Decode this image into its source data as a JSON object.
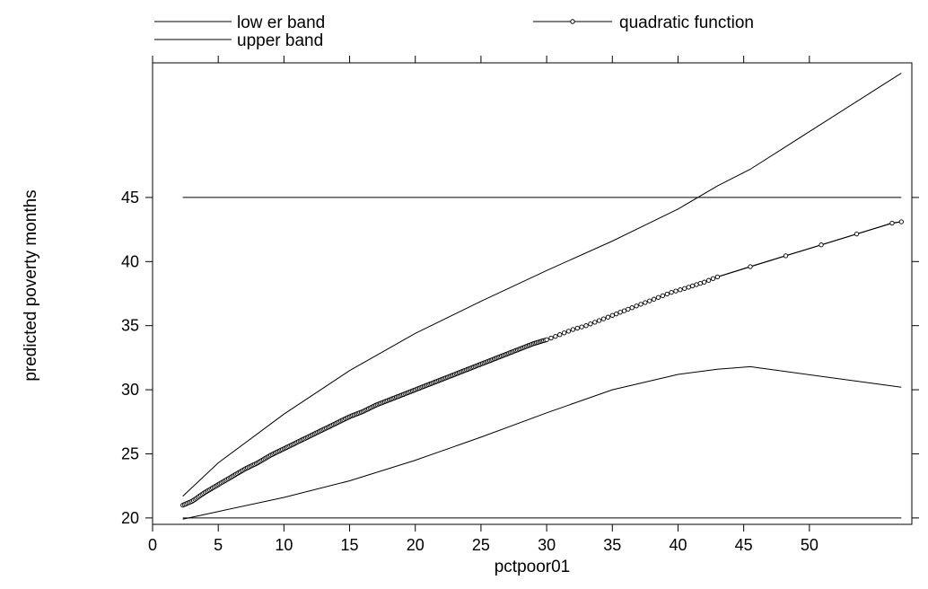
{
  "chart_data": {
    "type": "line",
    "xlabel": "pctpoor01",
    "ylabel": "predicted poverty months",
    "xlim": [
      0,
      57.8
    ],
    "ylim": [
      19.5,
      55.5
    ],
    "xticks": [
      0,
      5,
      10,
      15,
      20,
      25,
      30,
      35,
      40,
      45,
      50
    ],
    "yticks": [
      20,
      25,
      30,
      35,
      40,
      45
    ],
    "grid": false,
    "legend_position": "top",
    "legend": [
      {
        "label": "low er band",
        "style": "line"
      },
      {
        "label": "quadratic function",
        "style": "line-circle"
      },
      {
        "label": "upper band",
        "style": "line"
      }
    ],
    "series": [
      {
        "name": "low er band",
        "x": [
          2.3,
          5,
          10,
          15,
          20,
          25,
          30,
          35,
          40,
          43,
          45.5,
          57
        ],
        "y": [
          19.9,
          20.5,
          21.6,
          22.9,
          24.5,
          26.3,
          28.2,
          30.0,
          31.2,
          31.6,
          31.8,
          30.2
        ]
      },
      {
        "name": "upper band",
        "x": [
          2.3,
          5,
          10,
          15,
          20,
          25,
          30,
          35,
          40,
          43,
          45.5,
          57
        ],
        "y": [
          21.7,
          24.3,
          28.1,
          31.5,
          34.4,
          36.9,
          39.3,
          41.6,
          44.1,
          45.9,
          47.2,
          54.7
        ]
      },
      {
        "name": "quadratic function",
        "x": [
          2.3,
          3,
          4,
          5,
          6,
          7,
          8,
          9,
          10,
          11,
          12,
          13,
          14,
          15,
          16,
          17,
          18,
          19,
          20,
          21,
          22,
          23,
          24,
          25,
          26,
          27,
          28,
          29,
          30,
          31,
          32,
          33,
          34,
          35,
          36.5,
          37.5,
          38.5,
          39.5,
          40.5,
          42,
          43,
          45.5,
          56.3,
          57
        ],
        "y": [
          21.0,
          21.3,
          22.0,
          22.6,
          23.2,
          23.8,
          24.3,
          24.9,
          25.4,
          25.9,
          26.4,
          26.9,
          27.4,
          27.9,
          28.3,
          28.8,
          29.2,
          29.6,
          30.0,
          30.4,
          30.8,
          31.2,
          31.6,
          32.0,
          32.4,
          32.8,
          33.2,
          33.6,
          33.9,
          34.3,
          34.7,
          35.0,
          35.4,
          35.8,
          36.4,
          36.8,
          37.2,
          37.6,
          37.9,
          38.4,
          38.8,
          39.6,
          43.0,
          43.1
        ]
      }
    ],
    "reference_lines": [
      {
        "axis": "y",
        "value": 45
      },
      {
        "axis": "y",
        "value": 20
      }
    ]
  }
}
